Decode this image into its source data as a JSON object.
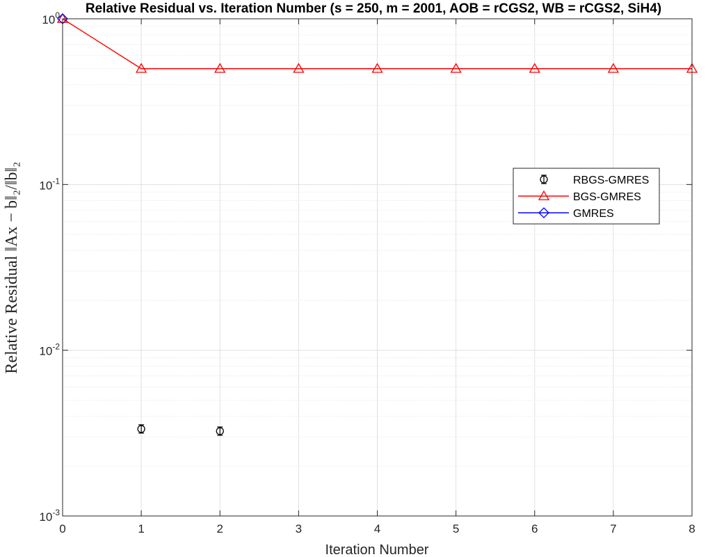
{
  "chart_data": {
    "type": "line",
    "title": "Relative Residual vs. Iteration Number (s = 250, m = 2001, AOB = rCGS2, WB = rCGS2, SiH4)",
    "xlabel": "Iteration Number",
    "ylabel": "Relative Residual ‖Ax − b‖₂/‖b‖₂",
    "xlim": [
      0,
      8
    ],
    "ylim": [
      0.001,
      1
    ],
    "yscale": "log",
    "grid": true,
    "legend_position": "right",
    "x_ticks": [
      "0",
      "1",
      "2",
      "3",
      "4",
      "5",
      "6",
      "7",
      "8"
    ],
    "y_ticks": [
      {
        "value": 1,
        "base": "10",
        "exp": "0"
      },
      {
        "value": 0.1,
        "base": "10",
        "exp": "-1"
      },
      {
        "value": 0.01,
        "base": "10",
        "exp": "-2"
      },
      {
        "value": 0.001,
        "base": "10",
        "exp": "-3"
      }
    ],
    "series": [
      {
        "name": "RBGS-GMRES",
        "color": "#000000",
        "marker": "circle-errorbar",
        "line": false,
        "x": [
          1,
          2
        ],
        "y": [
          0.00335,
          0.00325
        ]
      },
      {
        "name": "BGS-GMRES",
        "color": "#ff0000",
        "marker": "triangle",
        "line": true,
        "x": [
          0,
          1,
          2,
          3,
          4,
          5,
          6,
          7,
          8
        ],
        "y": [
          1,
          0.5,
          0.5,
          0.5,
          0.5,
          0.5,
          0.5,
          0.5,
          0.5
        ]
      },
      {
        "name": "GMRES",
        "color": "#0000ff",
        "marker": "diamond",
        "line": true,
        "x": [
          0
        ],
        "y": [
          1
        ]
      }
    ]
  }
}
